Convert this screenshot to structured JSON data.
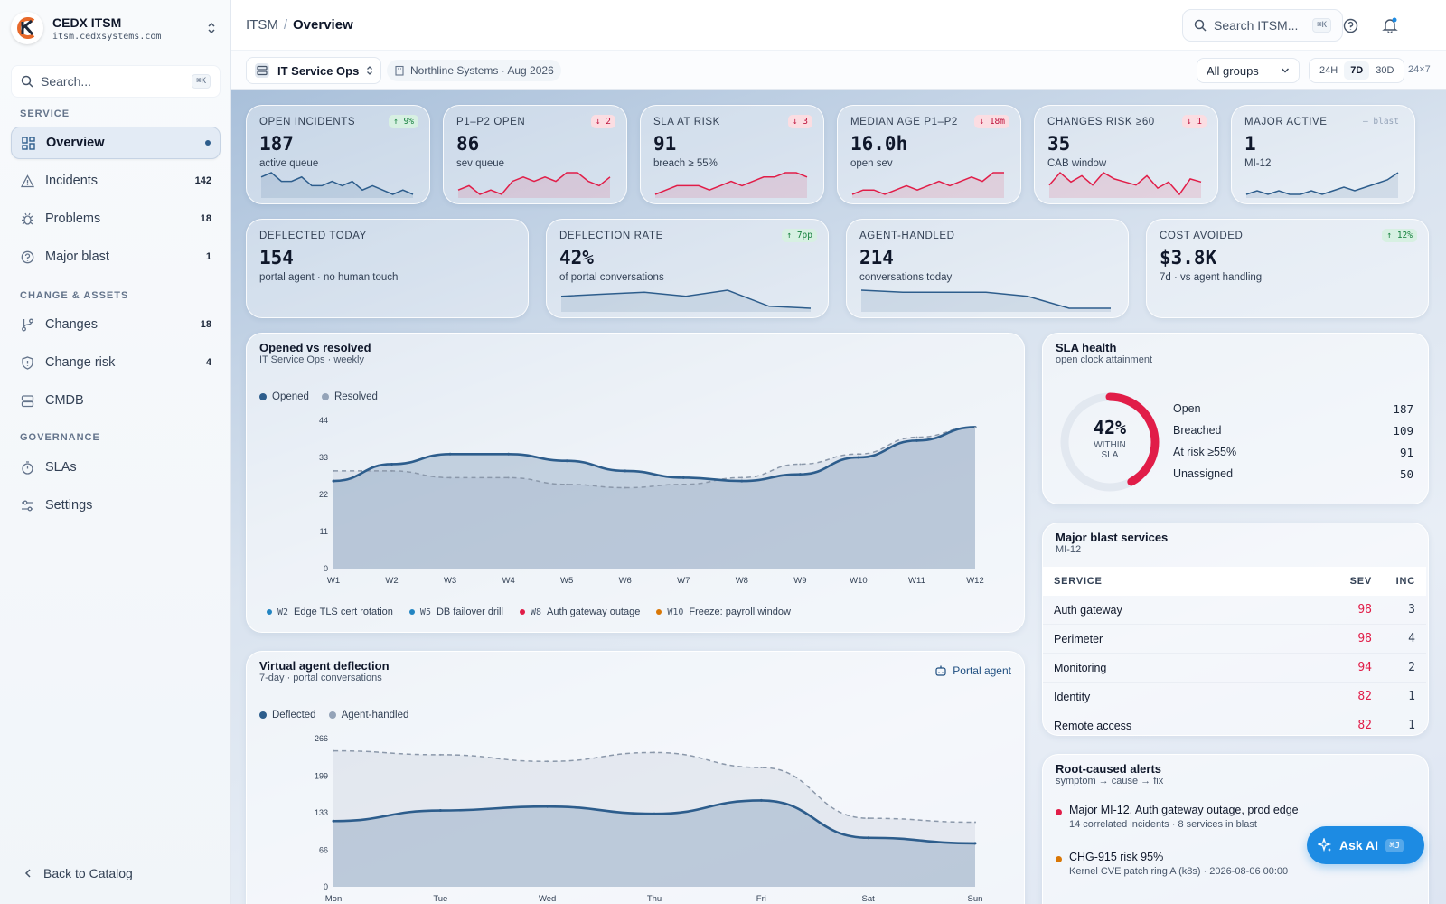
{
  "brand": {
    "name": "CEDX ITSM",
    "url": "itsm.cedxsystems.com"
  },
  "sidebar": {
    "search_placeholder": "Search...",
    "search_kbd": "⌘K",
    "sections": [
      "SERVICE",
      "CHANGE & ASSETS",
      "GOVERNANCE"
    ],
    "items": [
      {
        "label": "Overview",
        "count": ""
      },
      {
        "label": "Incidents",
        "count": "142"
      },
      {
        "label": "Problems",
        "count": "18"
      },
      {
        "label": "Major blast",
        "count": "1"
      },
      {
        "label": "Changes",
        "count": "18"
      },
      {
        "label": "Change risk",
        "count": "4"
      },
      {
        "label": "CMDB",
        "count": ""
      },
      {
        "label": "SLAs",
        "count": ""
      },
      {
        "label": "Settings",
        "count": ""
      }
    ],
    "back_label": "Back to Catalog"
  },
  "topbar": {
    "crumb_root": "ITSM",
    "crumb_sep": "/",
    "crumb_page": "Overview",
    "search_placeholder": "Search ITSM...",
    "search_kbd": "⌘K"
  },
  "subbar": {
    "team": "IT Service Ops",
    "org": "Northline Systems · Aug 2026",
    "group": "All groups",
    "ranges": [
      "24H",
      "7D",
      "30D"
    ],
    "active_range": "7D",
    "extra": "24×7"
  },
  "kpis": [
    {
      "label": "OPEN INCIDENTS",
      "value": "187",
      "sub": "active queue",
      "badge": "↑ 9%",
      "trend": "up",
      "spark": [
        12,
        13,
        11,
        11,
        12,
        10,
        10,
        11,
        10,
        11,
        9,
        10,
        9,
        8,
        9,
        8
      ]
    },
    {
      "label": "P1–P2 OPEN",
      "value": "86",
      "sub": "sev queue",
      "badge": "↓ 2",
      "trend": "down",
      "spark": [
        8,
        9,
        7,
        8,
        7,
        10,
        11,
        10,
        11,
        10,
        12,
        12,
        10,
        9,
        11
      ]
    },
    {
      "label": "SLA AT RISK",
      "value": "91",
      "sub": "breach ≥ 55%",
      "badge": "↓ 3",
      "trend": "down",
      "spark": [
        6,
        7,
        8,
        8,
        8,
        7,
        8,
        9,
        8,
        9,
        10,
        10,
        11,
        11,
        10
      ]
    },
    {
      "label": "MEDIAN AGE P1–P2",
      "value": "16.0h",
      "sub": "open sev",
      "badge": "↓ 18m",
      "trend": "down",
      "spark": [
        7,
        8,
        8,
        7,
        8,
        9,
        8,
        9,
        10,
        9,
        10,
        11,
        10,
        12,
        12
      ]
    },
    {
      "label": "CHANGES RISK ≥60",
      "value": "35",
      "sub": "CAB window",
      "badge": "↓ 1",
      "trend": "down",
      "spark": [
        10,
        14,
        11,
        13,
        10,
        14,
        12,
        11,
        10,
        13,
        9,
        11,
        7,
        12,
        11
      ]
    },
    {
      "label": "MAJOR ACTIVE",
      "value": "1",
      "sub": "MI-12",
      "badge": "— blast",
      "trend": "neutral",
      "spark": [
        7,
        8,
        7,
        8,
        7,
        7,
        8,
        7,
        8,
        9,
        8,
        9,
        10,
        11,
        13
      ]
    },
    {
      "label": "DEFLECTED TODAY",
      "value": "154",
      "sub": "portal agent · no human touch",
      "badge": "",
      "trend": "none",
      "spark": []
    },
    {
      "label": "DEFLECTION RATE",
      "value": "42%",
      "sub": "of portal conversations",
      "badge": "↑ 7pp",
      "trend": "up",
      "spark": [
        10,
        11,
        12,
        10,
        13,
        5,
        4
      ]
    },
    {
      "label": "AGENT-HANDLED",
      "value": "214",
      "sub": "conversations today",
      "badge": "",
      "trend": "none",
      "spark": [
        12,
        11,
        11,
        11,
        9,
        3,
        3
      ]
    },
    {
      "label": "COST AVOIDED",
      "value": "$3.8K",
      "sub": "7d · vs agent handling",
      "badge": "↑ 12%",
      "trend": "up",
      "spark": []
    }
  ],
  "opened_chart": {
    "title": "Opened vs resolved",
    "subtitle": "IT Service Ops · weekly",
    "legend": [
      "Opened",
      "Resolved"
    ],
    "annotations": [
      {
        "week": "W2",
        "text": "Edge TLS cert rotation",
        "color": "#2385c2"
      },
      {
        "week": "W5",
        "text": "DB failover drill",
        "color": "#2385c2"
      },
      {
        "week": "W8",
        "text": "Auth gateway outage",
        "color": "#e11d48"
      },
      {
        "week": "W10",
        "text": "Freeze: payroll window",
        "color": "#d97706"
      }
    ]
  },
  "deflection_chart": {
    "title": "Virtual agent deflection",
    "subtitle": "7-day · portal conversations",
    "badge": "Portal agent",
    "legend": [
      "Deflected",
      "Agent-handled"
    ]
  },
  "chart_data": [
    {
      "type": "area",
      "title": "Opened vs resolved",
      "categories": [
        "W1",
        "W2",
        "W3",
        "W4",
        "W5",
        "W6",
        "W7",
        "W8",
        "W9",
        "W10",
        "W11",
        "W12"
      ],
      "series": [
        {
          "name": "Opened",
          "values": [
            26,
            31,
            34,
            34,
            32,
            29,
            27,
            26,
            28,
            33,
            38,
            42
          ]
        },
        {
          "name": "Resolved",
          "values": [
            29,
            29,
            27,
            27,
            25,
            24,
            25,
            27,
            31,
            34,
            39,
            42
          ]
        }
      ],
      "yticks": [
        0,
        11,
        22,
        33,
        44
      ],
      "ylim": [
        0,
        44
      ],
      "grid": false
    },
    {
      "type": "area",
      "title": "Virtual agent deflection",
      "categories": [
        "Mon",
        "Tue",
        "Wed",
        "Thu",
        "Fri",
        "Sat",
        "Sun"
      ],
      "series": [
        {
          "name": "Deflected",
          "values": [
            118,
            137,
            144,
            131,
            155,
            88,
            78
          ]
        },
        {
          "name": "Agent-handled",
          "values": [
            244,
            237,
            225,
            241,
            214,
            123,
            116
          ]
        }
      ],
      "yticks": [
        0,
        66,
        133,
        199,
        266
      ],
      "ylim": [
        0,
        266
      ],
      "grid": false
    }
  ],
  "sla": {
    "title": "SLA health",
    "subtitle": "open clock attainment",
    "pct": "42%",
    "pct_value": 0.42,
    "within_line1": "WITHIN",
    "within_line2": "SLA",
    "rows": [
      {
        "label": "Open",
        "value": "187"
      },
      {
        "label": "Breached",
        "value": "109"
      },
      {
        "label": "At risk ≥55%",
        "value": "91"
      },
      {
        "label": "Unassigned",
        "value": "50"
      }
    ]
  },
  "blast": {
    "title": "Major blast services",
    "subtitle": "MI-12",
    "headers": [
      "SERVICE",
      "SEV",
      "INC"
    ],
    "rows": [
      {
        "service": "Auth gateway",
        "sev": "98",
        "inc": "3"
      },
      {
        "service": "Perimeter",
        "sev": "98",
        "inc": "4"
      },
      {
        "service": "Monitoring",
        "sev": "94",
        "inc": "2"
      },
      {
        "service": "Identity",
        "sev": "82",
        "inc": "1"
      },
      {
        "service": "Remote access",
        "sev": "82",
        "inc": "1"
      }
    ]
  },
  "alerts": {
    "title": "Root-caused alerts",
    "subtitle": "symptom → cause → fix",
    "items": [
      {
        "title": "Major MI-12. Auth gateway outage, prod edge",
        "sub": "14 correlated incidents · 8 services in blast",
        "color": "#e11d48"
      },
      {
        "title": "CHG-915 risk 95%",
        "sub": "Kernel CVE patch ring A (k8s) · 2026-08-06 00:00",
        "color": "#d97706"
      }
    ]
  },
  "askai": {
    "label": "Ask AI",
    "kbd": "⌘J"
  },
  "colors": {
    "accent": "#2d5d8c",
    "danger": "#e11d48",
    "warn": "#d97706",
    "ask_ai": "#1d8be3"
  }
}
